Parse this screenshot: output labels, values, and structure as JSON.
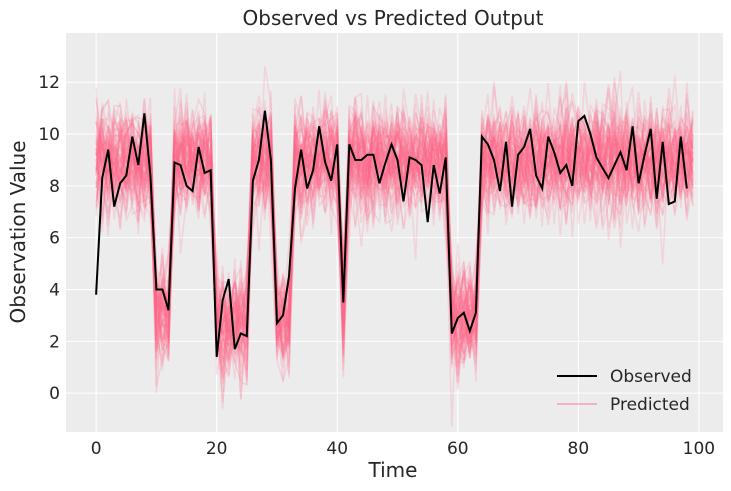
{
  "chart_data": {
    "type": "line",
    "title": "Observed vs Predicted Output",
    "xlabel": "Time",
    "ylabel": "Observation Value",
    "xlim": [
      -5,
      104
    ],
    "ylim": [
      -1.5,
      13.9
    ],
    "xticks": [
      0,
      20,
      40,
      60,
      80,
      100
    ],
    "yticks": [
      0,
      2,
      4,
      6,
      8,
      10,
      12
    ],
    "grid": true,
    "legend_position": "lower-right",
    "series": [
      {
        "name": "Observed",
        "color": "#000000",
        "x": [
          0,
          1,
          2,
          3,
          4,
          5,
          6,
          7,
          8,
          9,
          10,
          11,
          12,
          13,
          14,
          15,
          16,
          17,
          18,
          19,
          20,
          21,
          22,
          23,
          24,
          25,
          26,
          27,
          28,
          29,
          30,
          31,
          32,
          33,
          34,
          35,
          36,
          37,
          38,
          39,
          40,
          41,
          42,
          43,
          44,
          45,
          46,
          47,
          48,
          49,
          50,
          51,
          52,
          53,
          54,
          55,
          56,
          57,
          58,
          59,
          60,
          61,
          62,
          63,
          64,
          65,
          66,
          67,
          68,
          69,
          70,
          71,
          72,
          73,
          74,
          75,
          76,
          77,
          78,
          79,
          80,
          81,
          82,
          83,
          84,
          85,
          86,
          87,
          88,
          89,
          90,
          91,
          92,
          93,
          94,
          95,
          96,
          97,
          98,
          99
        ],
        "values": [
          3.8,
          8.3,
          9.4,
          7.2,
          8.1,
          8.4,
          9.9,
          8.8,
          10.8,
          8.4,
          4.0,
          4.0,
          3.2,
          8.9,
          8.8,
          8.0,
          7.8,
          9.5,
          8.5,
          8.6,
          1.4,
          3.6,
          4.4,
          1.7,
          2.3,
          2.2,
          8.2,
          9.0,
          10.9,
          9.0,
          2.7,
          3.0,
          4.5,
          7.9,
          9.4,
          7.9,
          8.6,
          10.3,
          8.9,
          8.2,
          9.6,
          3.5,
          9.6,
          9.0,
          9.0,
          9.2,
          9.2,
          8.1,
          8.9,
          9.6,
          9.0,
          7.4,
          9.1,
          9.0,
          8.8,
          6.6,
          8.8,
          7.7,
          9.1,
          2.3,
          2.9,
          3.1,
          2.4,
          3.1,
          9.9,
          9.6,
          9.0,
          7.8,
          9.7,
          7.2,
          9.2,
          9.5,
          10.2,
          8.4,
          7.9,
          9.9,
          9.3,
          8.5,
          8.8,
          8.0,
          10.5,
          10.7,
          10.0,
          9.1,
          8.7,
          8.3,
          8.8,
          9.3,
          8.6,
          10.3,
          8.1,
          9.2,
          10.2,
          7.5,
          9.7,
          7.3,
          7.4,
          9.9,
          7.9,
          null
        ]
      },
      {
        "name": "Predicted",
        "color": "#ff6b8a",
        "draws": 80,
        "spread": 1.0
      }
    ]
  }
}
